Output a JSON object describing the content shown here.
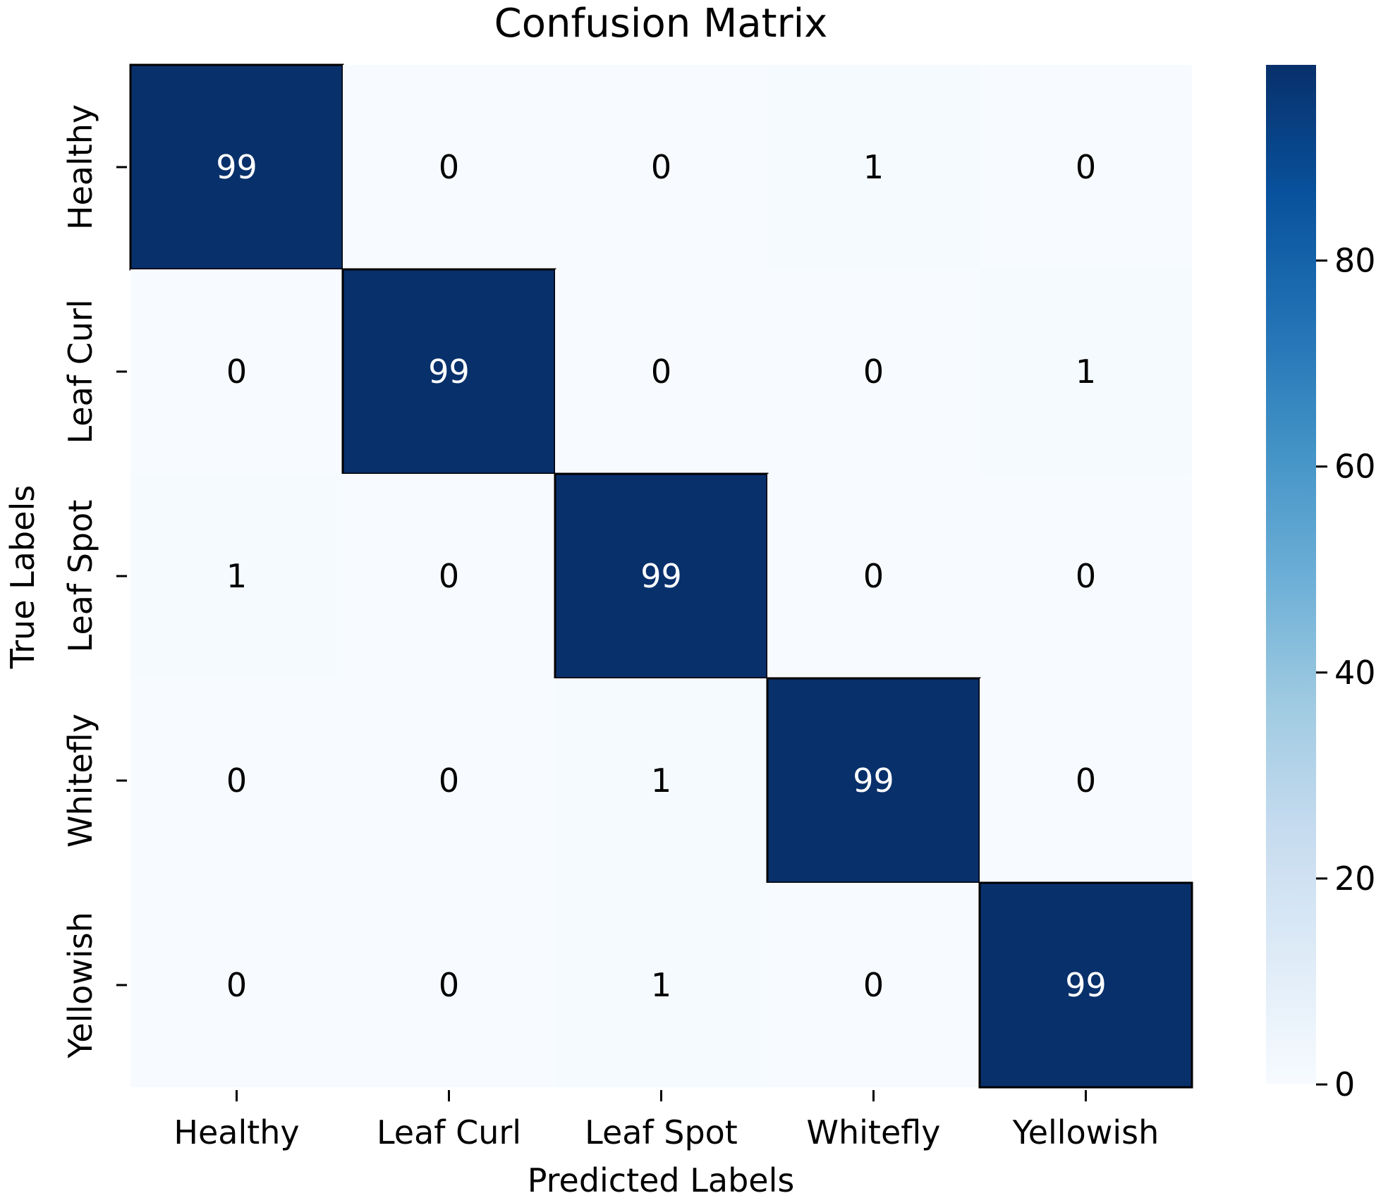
{
  "chart_data": {
    "type": "heatmap",
    "title": "Confusion Matrix",
    "xlabel": "Predicted Labels",
    "ylabel": "True Labels",
    "x_categories": [
      "Healthy",
      "Leaf Curl",
      "Leaf Spot",
      "Whitefly",
      "Yellowish"
    ],
    "y_categories": [
      "Healthy",
      "Leaf Curl",
      "Leaf Spot",
      "Whitefly",
      "Yellowish"
    ],
    "values": [
      [
        99,
        0,
        0,
        1,
        0
      ],
      [
        0,
        99,
        0,
        0,
        1
      ],
      [
        1,
        0,
        99,
        0,
        0
      ],
      [
        0,
        0,
        1,
        99,
        0
      ],
      [
        0,
        0,
        1,
        0,
        99
      ]
    ],
    "colorbar": {
      "ticks": [
        "0",
        "20",
        "40",
        "60",
        "80"
      ],
      "tick_values": [
        0,
        20,
        40,
        60,
        80
      ],
      "range": [
        0,
        99
      ],
      "colormap": [
        "#f7fbff",
        "#deebf7",
        "#c6dbef",
        "#9ecae1",
        "#6baed6",
        "#4292c6",
        "#2171b5",
        "#08519c",
        "#08306b"
      ]
    },
    "text_color_light": "#ffffff",
    "text_color_dark": "#000000"
  }
}
